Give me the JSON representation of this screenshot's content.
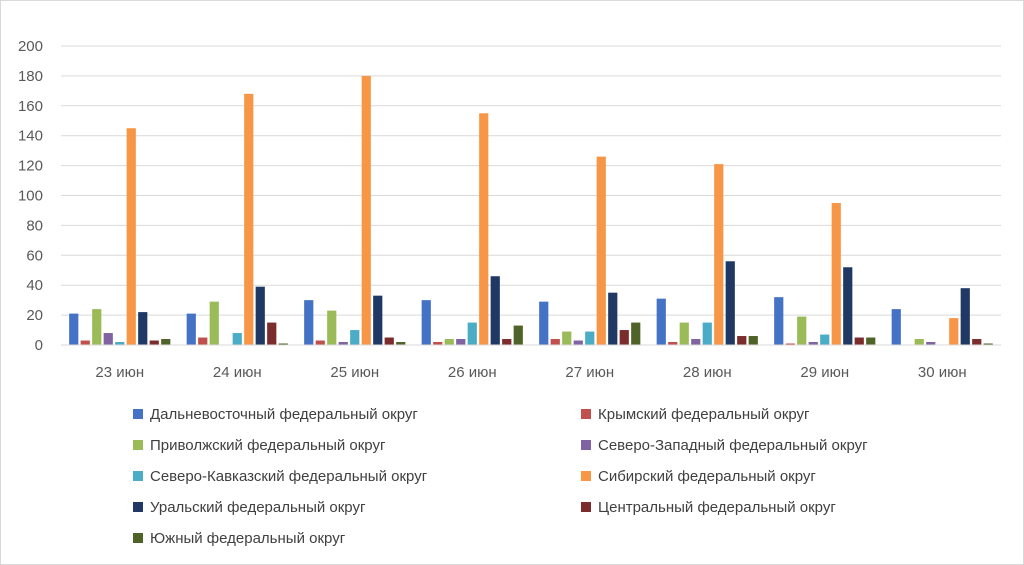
{
  "chart_data": {
    "type": "bar",
    "title": "",
    "xlabel": "",
    "ylabel": "",
    "ylim": [
      0,
      200
    ],
    "yticks": [
      0,
      20,
      40,
      60,
      80,
      100,
      120,
      140,
      160,
      180,
      200
    ],
    "grid": true,
    "legend_position": "bottom",
    "categories": [
      "23 июн",
      "24 июн",
      "25 июн",
      "26 июн",
      "27 июн",
      "28 июн",
      "29 июн",
      "30 июн"
    ],
    "series": [
      {
        "name": "Дальневосточный федеральный округ",
        "color": "#4472C4",
        "values": [
          21,
          21,
          30,
          30,
          29,
          31,
          32,
          24
        ]
      },
      {
        "name": "Крымский федеральный округ",
        "color": "#C0504D",
        "values": [
          3,
          5,
          3,
          2,
          4,
          2,
          1,
          0
        ]
      },
      {
        "name": "Приволжский федеральный округ",
        "color": "#9BBB59",
        "values": [
          24,
          29,
          23,
          4,
          9,
          15,
          19,
          4
        ]
      },
      {
        "name": "Северо-Западный федеральный округ",
        "color": "#8064A2",
        "values": [
          8,
          0,
          2,
          4,
          3,
          4,
          2,
          2
        ]
      },
      {
        "name": "Северо-Кавказский федеральный округ",
        "color": "#4BACC6",
        "values": [
          2,
          8,
          10,
          15,
          9,
          15,
          7,
          0
        ]
      },
      {
        "name": "Сибирский федеральный округ",
        "color": "#F79646",
        "values": [
          145,
          168,
          180,
          155,
          126,
          121,
          95,
          18
        ]
      },
      {
        "name": "Уральский федеральный округ",
        "color": "#1F3864",
        "values": [
          22,
          39,
          33,
          46,
          35,
          56,
          52,
          38
        ]
      },
      {
        "name": "Центральный федеральный округ",
        "color": "#7B2C2C",
        "values": [
          3,
          15,
          5,
          4,
          10,
          6,
          5,
          4
        ]
      },
      {
        "name": "Южный федеральный округ",
        "color": "#4F6228",
        "values": [
          4,
          1,
          2,
          13,
          15,
          6,
          5,
          1
        ]
      }
    ]
  }
}
